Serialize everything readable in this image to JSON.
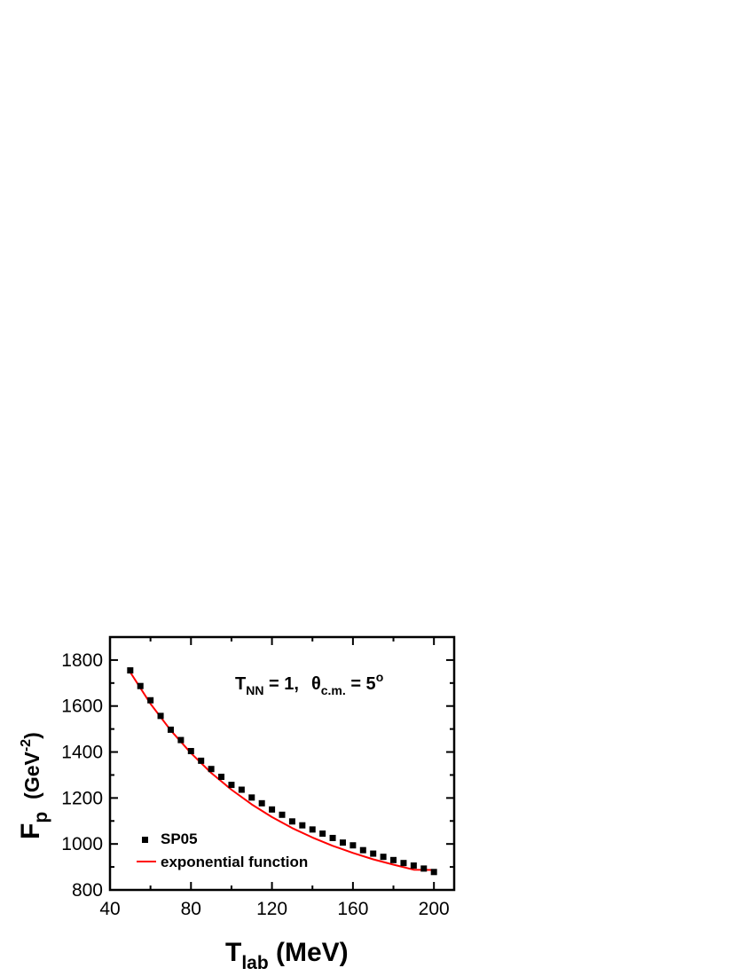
{
  "chart_data": {
    "type": "scatter",
    "x_axis": {
      "label_main": "T",
      "label_sub": "lab",
      "label_unit": " (MeV)",
      "range": [
        40,
        210
      ],
      "ticks": [
        40,
        80,
        120,
        160,
        200
      ],
      "tick_labels": [
        "40",
        "80",
        "120",
        "160",
        "200"
      ],
      "minor_step": 20
    },
    "y_axis": {
      "label_main": "F",
      "label_sub": "p",
      "label_unit": "(GeV",
      "label_sup": "-2",
      "label_close": ")",
      "range": [
        800,
        1900
      ],
      "ticks": [
        800,
        1000,
        1200,
        1400,
        1600,
        1800
      ],
      "tick_labels": [
        "800",
        "1000",
        "1200",
        "1400",
        "1600",
        "1800"
      ],
      "minor_step": 100
    },
    "annotation": {
      "t_main": "T",
      "t_sub": "NN",
      "t_value": " = 1,",
      "theta": "θ",
      "theta_sub": "c.m.",
      "theta_value": " = 5",
      "theta_sup": "o"
    },
    "series": [
      {
        "name": "SP05",
        "style": "square-markers",
        "color": "#000000",
        "x": [
          50,
          55,
          60,
          65,
          70,
          75,
          80,
          85,
          90,
          95,
          100,
          105,
          110,
          115,
          120,
          125,
          130,
          135,
          140,
          145,
          150,
          155,
          160,
          165,
          170,
          175,
          180,
          185,
          190,
          195,
          200
        ],
        "y": [
          1755,
          1687,
          1625,
          1557,
          1497,
          1452,
          1404,
          1362,
          1326,
          1292,
          1257,
          1236,
          1202,
          1177,
          1150,
          1127,
          1098,
          1081,
          1063,
          1045,
          1026,
          1006,
          994,
          973,
          958,
          944,
          930,
          917,
          906,
          893,
          878
        ]
      },
      {
        "name": "exponential function",
        "style": "line",
        "color": "#ff0000",
        "x": [
          50,
          60,
          70,
          80,
          90,
          100,
          110,
          120,
          130,
          140,
          150,
          160,
          170,
          180,
          190,
          200
        ],
        "y": [
          1747,
          1610,
          1494,
          1395,
          1309,
          1236,
          1172,
          1117,
          1069,
          1028,
          992,
          961,
          933,
          910,
          888,
          887
        ]
      }
    ],
    "legend_position": "bottom-left",
    "grid": false
  }
}
